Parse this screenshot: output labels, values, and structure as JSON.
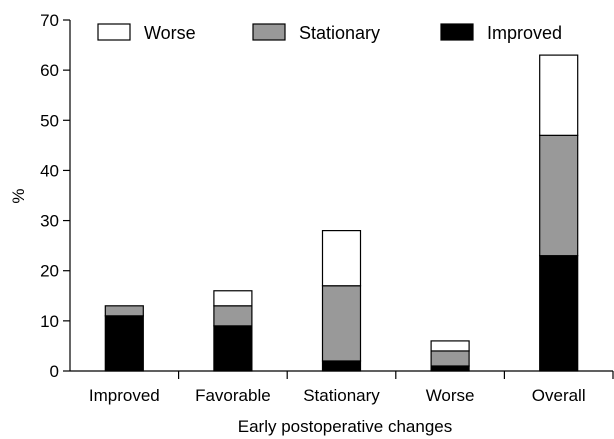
{
  "chart_data": {
    "type": "bar",
    "stacked": true,
    "title": "",
    "xlabel": "Early postoperative changes",
    "ylabel": "%",
    "ylim": [
      0,
      70
    ],
    "yticks": [
      0,
      10,
      20,
      30,
      40,
      50,
      60,
      70
    ],
    "grid": false,
    "legend_position": "top",
    "categories": [
      "Improved",
      "Favorable",
      "Stationary",
      "Worse",
      "Overall"
    ],
    "series": [
      {
        "name": "Improved",
        "color": "#000000",
        "values": [
          11,
          9,
          2,
          1,
          23
        ]
      },
      {
        "name": "Stationary",
        "color": "#999999",
        "values": [
          2,
          4,
          15,
          3,
          24
        ]
      },
      {
        "name": "Worse",
        "color": "#ffffff",
        "values": [
          0,
          3,
          11,
          2,
          16
        ]
      }
    ],
    "legend_order": [
      "Worse",
      "Stationary",
      "Improved"
    ]
  }
}
